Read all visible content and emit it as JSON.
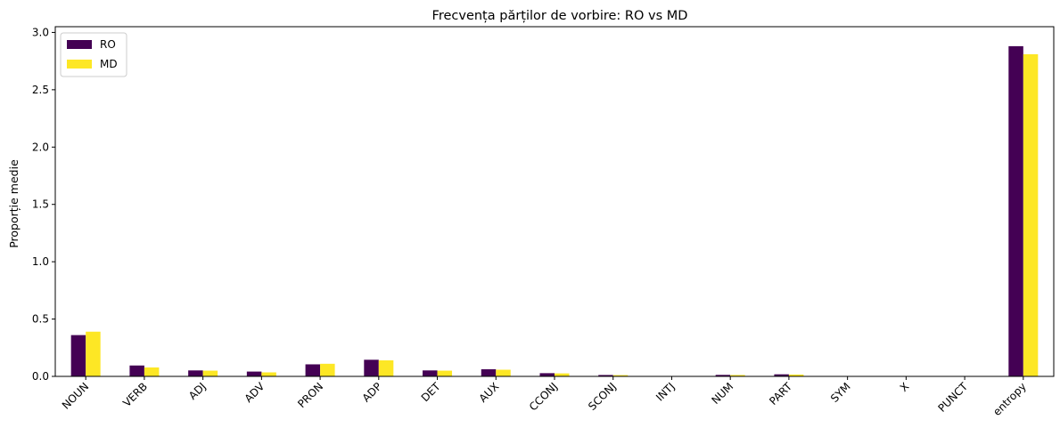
{
  "chart_data": {
    "type": "bar",
    "title": "Frecvența părților de vorbire: RO vs MD",
    "xlabel": "",
    "ylabel": "Proporție medie",
    "ylim": [
      0,
      3.05
    ],
    "yticks": [
      "0.0",
      "0.5",
      "1.0",
      "1.5",
      "2.0",
      "2.5",
      "3.0"
    ],
    "categories": [
      "NOUN",
      "VERB",
      "ADJ",
      "ADV",
      "PRON",
      "ADP",
      "DET",
      "AUX",
      "CCONJ",
      "SCONJ",
      "INTJ",
      "NUM",
      "PART",
      "SYM",
      "X",
      "PUNCT",
      "entropy"
    ],
    "series": [
      {
        "name": "RO",
        "color": "#440154",
        "values": [
          0.36,
          0.095,
          0.052,
          0.042,
          0.105,
          0.145,
          0.052,
          0.062,
          0.028,
          0.012,
          0.001,
          0.013,
          0.018,
          0.001,
          0.001,
          0.0,
          2.88
        ]
      },
      {
        "name": "MD",
        "color": "#fde725",
        "values": [
          0.39,
          0.078,
          0.05,
          0.035,
          0.11,
          0.14,
          0.05,
          0.058,
          0.026,
          0.011,
          0.001,
          0.012,
          0.016,
          0.001,
          0.001,
          0.0,
          2.81
        ]
      }
    ],
    "legend": {
      "position": "top-left",
      "entries": [
        "RO",
        "MD"
      ]
    },
    "grid": false
  }
}
